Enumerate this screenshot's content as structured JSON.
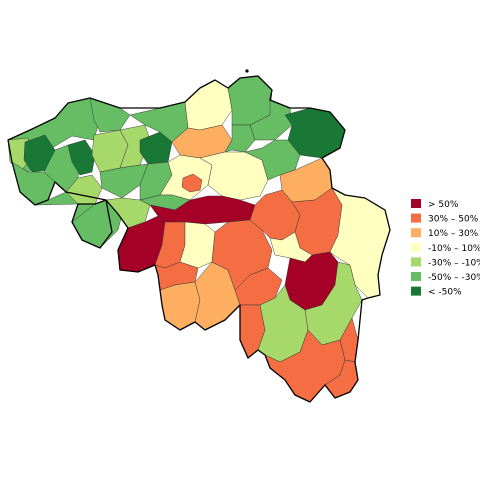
{
  "legend": {
    "entries": [
      {
        "label": "> 50%",
        "color": "#a50026"
      },
      {
        "label": "30% – 50%",
        "color": "#f46d43"
      },
      {
        "label": "10% – 30%",
        "color": "#fdae61"
      },
      {
        "label": "-10% – 10%",
        "color": "#ffffbf"
      },
      {
        "label": "-30% – -10%",
        "color": "#a6d96a"
      },
      {
        "label": "-50% – -30%",
        "color": "#66bd63"
      },
      {
        "label": "< -50%",
        "color": "#1a7837"
      }
    ]
  },
  "colors": {
    "border": "#000000",
    "region_stroke": "#333333",
    "background": "#ffffff"
  }
}
